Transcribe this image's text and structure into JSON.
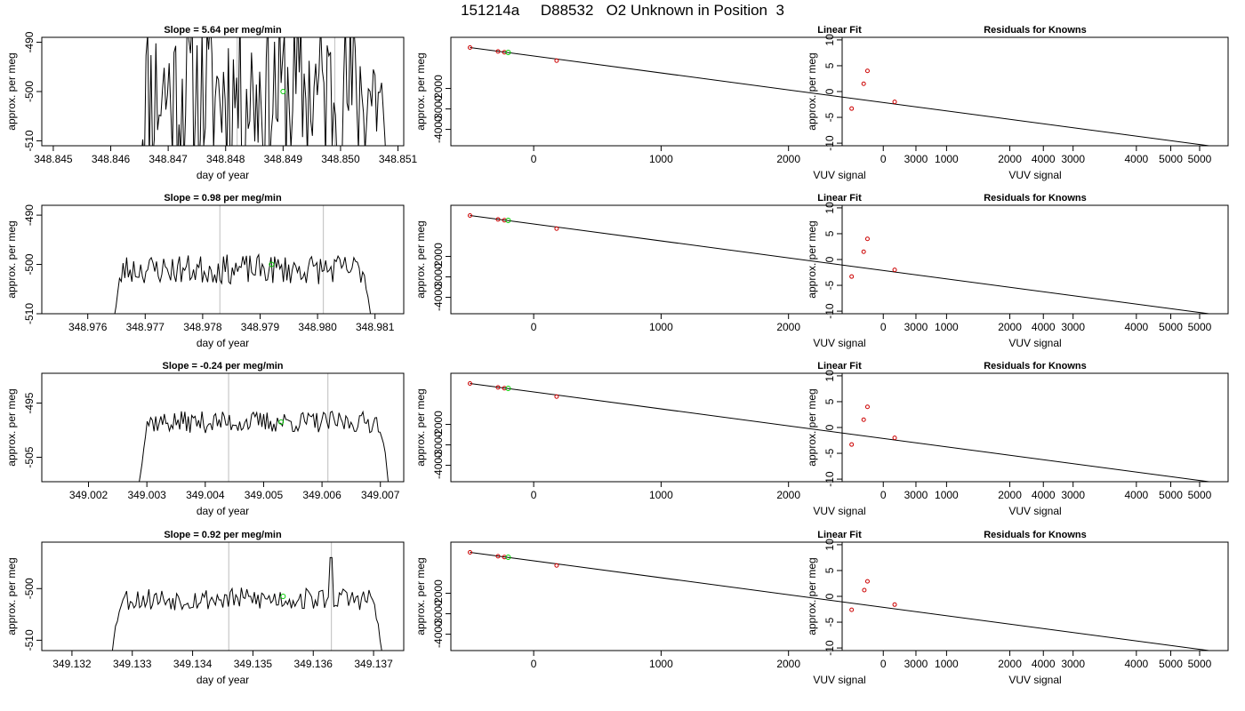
{
  "page": {
    "title": "151214a     D88532   O2 Unknown in Position  3"
  },
  "colors": {
    "line": "#000000",
    "known": "#cc0000",
    "unknown": "#00cc00",
    "gridline": "#c8c8c8"
  },
  "chart_data": [
    {
      "row": 1,
      "col": 1,
      "type": "line",
      "title": "Slope =  5.64  per meg/min",
      "xlabel": "day of year",
      "ylabel": "approx. per meg",
      "xlim": [
        348.8448,
        348.8511
      ],
      "ylim": [
        -511,
        -489
      ],
      "xticks": [
        "348.845",
        "348.846",
        "348.847",
        "348.848",
        "348.849",
        "348.850",
        "348.851"
      ],
      "yticks": [
        -490,
        -500,
        -510
      ],
      "vlines": [
        348.8482,
        348.8499
      ],
      "marker": {
        "x": 348.849,
        "y": -500
      },
      "series": [
        {
          "start": 348.8465,
          "end": 348.8508,
          "mean": -500,
          "amp": 17,
          "seed": 11,
          "ramp": 0.0001,
          "n": 150
        }
      ]
    },
    {
      "row": 1,
      "col": 2,
      "type": "line",
      "title": "Linear Fit",
      "xlabel": "VUV signal",
      "ylabel": "approx. per meg",
      "xlim": [
        -650,
        5450
      ],
      "ylim": [
        -4800,
        500
      ],
      "xticks": [
        "0",
        "1000",
        "2000",
        "3000",
        "4000",
        "5000"
      ],
      "yticks": [
        -2000,
        -3000,
        -4000
      ],
      "line": [
        [
          -500,
          0
        ],
        [
          5300,
          -4800
        ]
      ],
      "knowns": [
        [
          -500,
          0
        ],
        [
          -280,
          -190
        ],
        [
          -230,
          -230
        ],
        [
          180,
          -640
        ]
      ],
      "unknown": [
        -200,
        -240
      ]
    },
    {
      "row": 1,
      "col": 3,
      "type": "scatter",
      "title": "Residuals for Knowns",
      "xlabel": "VUV signal",
      "ylabel": "approx. per meg",
      "xlim": [
        -650,
        5450
      ],
      "ylim": [
        -10.5,
        10.5
      ],
      "xticks": [
        "0",
        "1000",
        "2000",
        "3000",
        "4000",
        "5000"
      ],
      "yticks": [
        10,
        5,
        0,
        -5,
        -10
      ],
      "points": [
        [
          -500,
          -3.3
        ],
        [
          -310,
          1.5
        ],
        [
          -250,
          4.0
        ],
        [
          180,
          -2.0
        ]
      ]
    },
    {
      "row": 2,
      "col": 1,
      "type": "line",
      "title": "Slope =  0.98  per meg/min",
      "xlabel": "day of year",
      "ylabel": "approx. per meg",
      "xlim": [
        348.9752,
        348.9815
      ],
      "ylim": [
        -510,
        -488
      ],
      "xticks": [
        "348.976",
        "348.977",
        "348.978",
        "348.979",
        "348.980",
        "348.981"
      ],
      "yticks": [
        -490,
        -500,
        -510
      ],
      "vlines": [
        348.9783,
        348.9801
      ],
      "marker": {
        "x": 348.9792,
        "y": -500
      },
      "series": [
        {
          "start": 348.9764,
          "end": 348.981,
          "mean": -501,
          "amp": 3,
          "seed": 23,
          "ramp": 0.0002,
          "n": 150
        }
      ]
    },
    {
      "row": 2,
      "col": 2,
      "type": "line",
      "title": "Linear Fit",
      "xlabel": "VUV signal",
      "ylabel": "approx. per meg",
      "xlim": [
        -650,
        5450
      ],
      "ylim": [
        -4800,
        500
      ],
      "xticks": [
        "0",
        "1000",
        "2000",
        "3000",
        "4000",
        "5000"
      ],
      "yticks": [
        -2000,
        -3000,
        -4000
      ],
      "line": [
        [
          -500,
          0
        ],
        [
          5300,
          -4800
        ]
      ],
      "knowns": [
        [
          -500,
          0
        ],
        [
          -280,
          -190
        ],
        [
          -230,
          -230
        ],
        [
          180,
          -640
        ]
      ],
      "unknown": [
        -200,
        -240
      ]
    },
    {
      "row": 2,
      "col": 3,
      "type": "scatter",
      "title": "Residuals for Knowns",
      "xlabel": "VUV signal",
      "ylabel": "approx. per meg",
      "xlim": [
        -650,
        5450
      ],
      "ylim": [
        -10.5,
        10.5
      ],
      "xticks": [
        "0",
        "1000",
        "2000",
        "3000",
        "4000",
        "5000"
      ],
      "yticks": [
        10,
        5,
        0,
        -5,
        -10
      ],
      "points": [
        [
          -500,
          -3.3
        ],
        [
          -310,
          1.5
        ],
        [
          -250,
          4.0
        ],
        [
          180,
          -2.0
        ]
      ]
    },
    {
      "row": 3,
      "col": 1,
      "type": "line",
      "title": "Slope =  -0.24  per meg/min",
      "xlabel": "day of year",
      "ylabel": "approx. per meg",
      "xlim": [
        349.0012,
        349.0074
      ],
      "ylim": [
        -509.5,
        -489.5
      ],
      "xticks": [
        "349.002",
        "349.003",
        "349.004",
        "349.005",
        "349.006",
        "349.007"
      ],
      "yticks": [
        -495,
        -505
      ],
      "vlines": [
        349.0044,
        349.0061
      ],
      "marker": {
        "x": 349.0053,
        "y": -498.5
      },
      "series": [
        {
          "start": 349.0028,
          "end": 349.0072,
          "mean": -498.5,
          "amp": 2,
          "seed": 37,
          "ramp": 0.0002,
          "n": 150
        }
      ]
    },
    {
      "row": 3,
      "col": 2,
      "type": "line",
      "title": "Linear Fit",
      "xlabel": "VUV signal",
      "ylabel": "approx. per meg",
      "xlim": [
        -650,
        5450
      ],
      "ylim": [
        -4800,
        500
      ],
      "xticks": [
        "0",
        "1000",
        "2000",
        "3000",
        "4000",
        "5000"
      ],
      "yticks": [
        -2000,
        -3000,
        -4000
      ],
      "line": [
        [
          -500,
          0
        ],
        [
          5300,
          -4800
        ]
      ],
      "knowns": [
        [
          -500,
          0
        ],
        [
          -280,
          -190
        ],
        [
          -230,
          -230
        ],
        [
          180,
          -640
        ]
      ],
      "unknown": [
        -200,
        -240
      ]
    },
    {
      "row": 3,
      "col": 3,
      "type": "scatter",
      "title": "Residuals for Knowns",
      "xlabel": "VUV signal",
      "ylabel": "approx. per meg",
      "xlim": [
        -650,
        5450
      ],
      "ylim": [
        -10.5,
        10.5
      ],
      "xticks": [
        "0",
        "1000",
        "2000",
        "3000",
        "4000",
        "5000"
      ],
      "yticks": [
        10,
        5,
        0,
        -5,
        -10
      ],
      "points": [
        [
          -500,
          -3.3
        ],
        [
          -310,
          1.5
        ],
        [
          -250,
          4.0
        ],
        [
          180,
          -2.0
        ]
      ]
    },
    {
      "row": 4,
      "col": 1,
      "type": "line",
      "title": "Slope =  0.92  per meg/min",
      "xlabel": "day of year",
      "ylabel": "approx. per meg",
      "xlim": [
        349.1315,
        349.1375
      ],
      "ylim": [
        -512,
        -491
      ],
      "xticks": [
        "349.132",
        "349.133",
        "349.134",
        "349.135",
        "349.136",
        "349.137"
      ],
      "yticks": [
        -500,
        -510
      ],
      "vlines": [
        349.1346,
        349.1363
      ],
      "marker": {
        "x": 349.1355,
        "y": -501.5
      },
      "series": [
        {
          "start": 349.1326,
          "end": 349.1372,
          "mean": -502,
          "amp": 2.2,
          "seed": 53,
          "ramp": 0.0002,
          "n": 150,
          "spike": [
            349.1363,
            -494
          ]
        }
      ]
    },
    {
      "row": 4,
      "col": 2,
      "type": "line",
      "title": "Linear Fit",
      "xlabel": "VUV signal",
      "ylabel": "approx. per meg",
      "xlim": [
        -650,
        5450
      ],
      "ylim": [
        -4800,
        500
      ],
      "xticks": [
        "0",
        "1000",
        "2000",
        "3000",
        "4000",
        "5000"
      ],
      "yticks": [
        -2000,
        -3000,
        -4000
      ],
      "line": [
        [
          -500,
          0
        ],
        [
          5300,
          -4800
        ]
      ],
      "knowns": [
        [
          -500,
          0
        ],
        [
          -280,
          -190
        ],
        [
          -230,
          -230
        ],
        [
          180,
          -640
        ]
      ],
      "unknown": [
        -200,
        -240
      ]
    },
    {
      "row": 4,
      "col": 3,
      "type": "scatter",
      "title": "Residuals for Knowns",
      "xlabel": "VUV signal",
      "ylabel": "approx. per meg",
      "xlim": [
        -650,
        5450
      ],
      "ylim": [
        -10.5,
        10.5
      ],
      "xticks": [
        "0",
        "1000",
        "2000",
        "3000",
        "4000",
        "5000"
      ],
      "yticks": [
        10,
        5,
        0,
        -5,
        -10
      ],
      "points": [
        [
          -500,
          -2.6
        ],
        [
          -300,
          1.2
        ],
        [
          -250,
          2.9
        ],
        [
          180,
          -1.6
        ]
      ]
    }
  ]
}
